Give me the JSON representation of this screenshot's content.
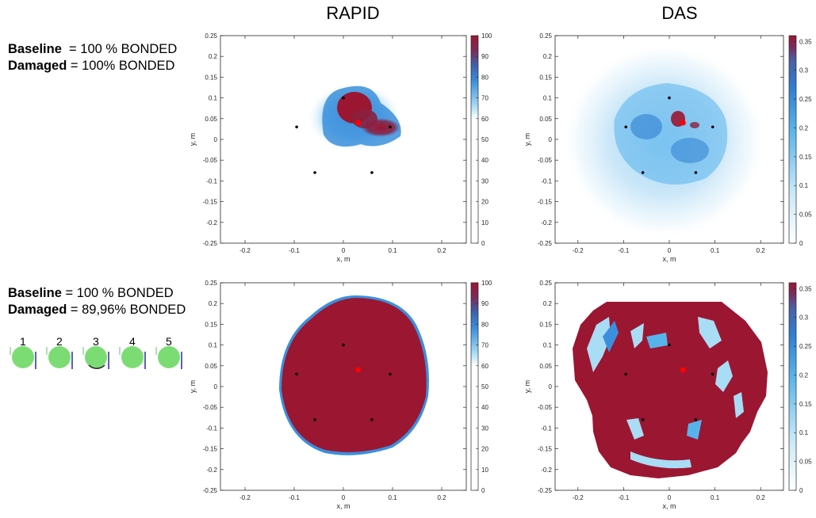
{
  "columns": {
    "left": "RAPID",
    "right": "DAS"
  },
  "cases": [
    {
      "baseline_key": "Baseline",
      "baseline_val": "= 100 % BONDED",
      "damaged_key": "Damaged",
      "damaged_val": "= 100% BONDED"
    },
    {
      "baseline_key": "Baseline",
      "baseline_val": "= 100 % BONDED",
      "damaged_key": "Damaged",
      "damaged_val": "= 89,96% BONDED",
      "sensor_labels": [
        "1",
        "2",
        "3",
        "4",
        "5"
      ]
    }
  ],
  "colors": {
    "dark_red": "#9b1631",
    "mid_blue": "#3b8fdc",
    "light_blue": "#a9dcf5",
    "sensor_fill": "#7cdc74",
    "damage_marker": "#ff0000",
    "sensor_marker": "#000000"
  },
  "chart_data": [
    {
      "type": "heatmap",
      "panel": "top-left",
      "title": "RAPID",
      "xlabel": "x, m",
      "ylabel": "y, m",
      "xlim": [
        -0.25,
        0.25
      ],
      "ylim": [
        -0.25,
        0.25
      ],
      "x_ticks": [
        -0.2,
        -0.1,
        0,
        0.1,
        0.2
      ],
      "y_ticks": [
        0.25,
        0.2,
        0.15,
        0.1,
        0.05,
        0,
        -0.05,
        -0.1,
        -0.15,
        -0.2,
        -0.25
      ],
      "colorbar": {
        "min": 0,
        "max": 100,
        "ticks": [
          0,
          10,
          20,
          30,
          40,
          50,
          60,
          70,
          80,
          90,
          100
        ]
      },
      "sensors": [
        [
          0,
          0.1
        ],
        [
          0.095,
          0.03
        ],
        [
          0.058,
          -0.08
        ],
        [
          -0.058,
          -0.08
        ],
        [
          -0.095,
          0.03
        ]
      ],
      "damage": [
        0.03,
        0.04
      ]
    },
    {
      "type": "heatmap",
      "panel": "top-right",
      "title": "DAS",
      "xlabel": "x, m",
      "ylabel": "y, m",
      "xlim": [
        -0.25,
        0.25
      ],
      "ylim": [
        -0.25,
        0.25
      ],
      "x_ticks": [
        -0.2,
        -0.1,
        0,
        0.1,
        0.2
      ],
      "y_ticks": [
        0.25,
        0.2,
        0.15,
        0.1,
        0.05,
        0,
        -0.05,
        -0.1,
        -0.15,
        -0.2,
        -0.25
      ],
      "colorbar": {
        "min": 0,
        "max": 0.36,
        "ticks": [
          0,
          0.05,
          0.1,
          0.15,
          0.2,
          0.25,
          0.3,
          0.35
        ]
      },
      "sensors": [
        [
          0,
          0.1
        ],
        [
          0.095,
          0.03
        ],
        [
          0.058,
          -0.08
        ],
        [
          -0.058,
          -0.08
        ],
        [
          -0.095,
          0.03
        ]
      ],
      "damage": [
        0.03,
        0.04
      ]
    },
    {
      "type": "heatmap",
      "panel": "bottom-left",
      "xlabel": "x, m",
      "ylabel": "y, m",
      "xlim": [
        -0.25,
        0.25
      ],
      "ylim": [
        -0.25,
        0.25
      ],
      "x_ticks": [
        -0.2,
        -0.1,
        0,
        0.1,
        0.2
      ],
      "y_ticks": [
        0.25,
        0.2,
        0.15,
        0.1,
        0.05,
        0,
        -0.05,
        -0.1,
        -0.15,
        -0.2,
        -0.25
      ],
      "colorbar": {
        "min": 0,
        "max": 100,
        "ticks": [
          0,
          10,
          20,
          30,
          40,
          50,
          60,
          70,
          80,
          90,
          100
        ]
      },
      "sensors": [
        [
          0,
          0.1
        ],
        [
          0.095,
          0.03
        ],
        [
          0.058,
          -0.08
        ],
        [
          -0.058,
          -0.08
        ],
        [
          -0.095,
          0.03
        ]
      ],
      "damage": [
        0.03,
        0.04
      ]
    },
    {
      "type": "heatmap",
      "panel": "bottom-right",
      "xlabel": "x, m",
      "ylabel": "y, m",
      "xlim": [
        -0.25,
        0.25
      ],
      "ylim": [
        -0.25,
        0.25
      ],
      "x_ticks": [
        -0.2,
        -0.1,
        0,
        0.1,
        0.2
      ],
      "y_ticks": [
        0.25,
        0.2,
        0.15,
        0.1,
        0.05,
        0,
        -0.05,
        -0.1,
        -0.15,
        -0.2,
        -0.25
      ],
      "colorbar": {
        "min": 0,
        "max": 0.36,
        "ticks": [
          0,
          0.05,
          0.1,
          0.15,
          0.2,
          0.25,
          0.3,
          0.35
        ]
      },
      "sensors": [
        [
          0,
          0.1
        ],
        [
          0.095,
          0.03
        ],
        [
          0.058,
          -0.08
        ],
        [
          -0.058,
          -0.08
        ],
        [
          -0.095,
          0.03
        ]
      ],
      "damage": [
        0.03,
        0.04
      ]
    }
  ]
}
